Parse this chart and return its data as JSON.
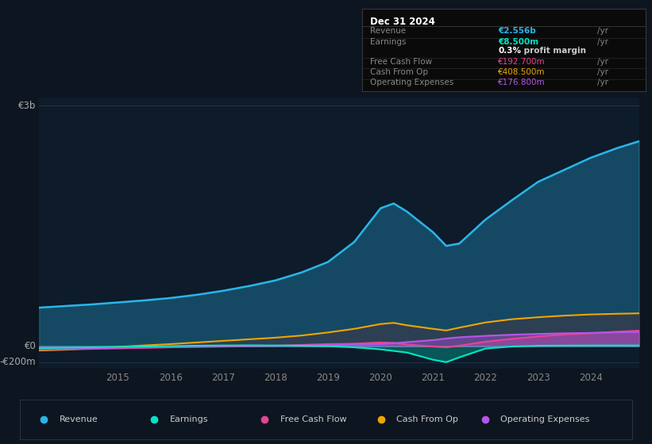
{
  "bg_color": "#0d1520",
  "plot_bg_color": "#0d1b2a",
  "years": [
    2013.5,
    2014.0,
    2014.5,
    2015.0,
    2015.5,
    2016.0,
    2016.5,
    2017.0,
    2017.5,
    2018.0,
    2018.5,
    2019.0,
    2019.5,
    2020.0,
    2020.25,
    2020.5,
    2021.0,
    2021.25,
    2021.5,
    2022.0,
    2022.5,
    2023.0,
    2023.5,
    2024.0,
    2024.5,
    2024.92
  ],
  "revenue": [
    480,
    500,
    520,
    545,
    570,
    600,
    640,
    690,
    750,
    820,
    920,
    1050,
    1300,
    1720,
    1780,
    1680,
    1420,
    1250,
    1280,
    1580,
    1820,
    2050,
    2200,
    2350,
    2470,
    2556
  ],
  "earnings": [
    -25,
    -20,
    -15,
    -10,
    -5,
    0,
    5,
    8,
    10,
    8,
    5,
    0,
    -15,
    -40,
    -60,
    -80,
    -170,
    -200,
    -140,
    -30,
    -5,
    5,
    7,
    8,
    8,
    8.5
  ],
  "free_cash_flow": [
    -45,
    -40,
    -35,
    -28,
    -22,
    -15,
    -10,
    -6,
    -2,
    5,
    15,
    25,
    30,
    45,
    40,
    20,
    -5,
    -15,
    5,
    55,
    90,
    120,
    145,
    160,
    180,
    192.7
  ],
  "cash_from_op": [
    -55,
    -45,
    -28,
    -10,
    8,
    25,
    45,
    65,
    85,
    105,
    132,
    170,
    215,
    275,
    290,
    260,
    215,
    195,
    230,
    295,
    335,
    360,
    380,
    395,
    403,
    408.5
  ],
  "operating_expenses": [
    -35,
    -30,
    -25,
    -20,
    -15,
    -10,
    -5,
    0,
    2,
    5,
    8,
    12,
    18,
    25,
    35,
    50,
    75,
    95,
    110,
    128,
    142,
    152,
    160,
    165,
    172,
    176.8
  ],
  "revenue_color": "#29b5e8",
  "earnings_color": "#00e5c3",
  "free_cash_flow_color": "#e84393",
  "cash_from_op_color": "#f0a500",
  "operating_expenses_color": "#b455e8",
  "ylim_min": -280,
  "ylim_max": 3100,
  "x_ticks": [
    2015,
    2016,
    2017,
    2018,
    2019,
    2020,
    2021,
    2022,
    2023,
    2024
  ],
  "ylabel_top": "€3b",
  "ylabel_zero": "€0",
  "ylabel_neg": "-€200m",
  "ylabel_top_val": 3000,
  "ylabel_zero_val": 0,
  "ylabel_neg_val": -200,
  "info_box": {
    "title": "Dec 31 2024",
    "rows": [
      {
        "label": "Revenue",
        "value": "€2.556b",
        "unit": "/yr",
        "color": "#29b5e8",
        "bold": true,
        "separator": true
      },
      {
        "label": "Earnings",
        "value": "€8.500m",
        "unit": "/yr",
        "color": "#00e5c3",
        "bold": true,
        "separator": false
      },
      {
        "label": "",
        "value": "0.3%",
        "unit": " profit margin",
        "color": "white",
        "bold": true,
        "separator": true
      },
      {
        "label": "Free Cash Flow",
        "value": "€192.700m",
        "unit": "/yr",
        "color": "#e84393",
        "bold": false,
        "separator": true
      },
      {
        "label": "Cash From Op",
        "value": "€408.500m",
        "unit": "/yr",
        "color": "#f0a500",
        "bold": false,
        "separator": true
      },
      {
        "label": "Operating Expenses",
        "value": "€176.800m",
        "unit": "/yr",
        "color": "#b455e8",
        "bold": false,
        "separator": false
      }
    ]
  },
  "legend_items": [
    {
      "label": "Revenue",
      "color": "#29b5e8"
    },
    {
      "label": "Earnings",
      "color": "#00e5c3"
    },
    {
      "label": "Free Cash Flow",
      "color": "#e84393"
    },
    {
      "label": "Cash From Op",
      "color": "#f0a500"
    },
    {
      "label": "Operating Expenses",
      "color": "#b455e8"
    }
  ]
}
